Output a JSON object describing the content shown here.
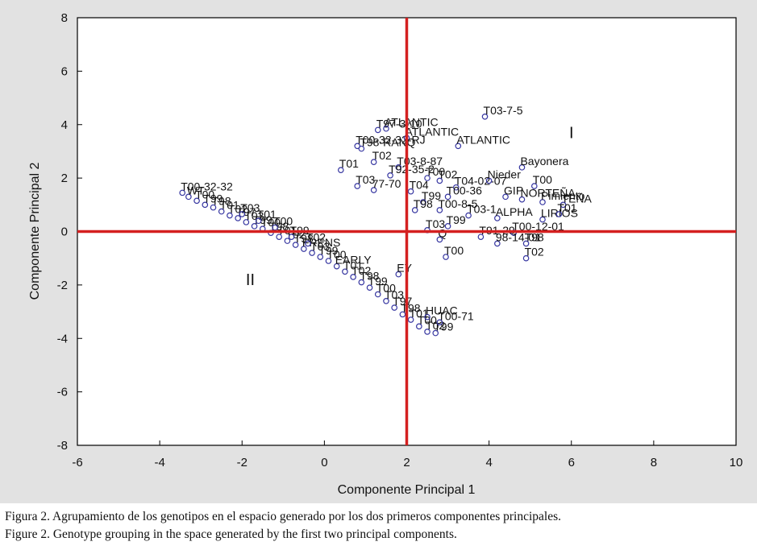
{
  "chart_data": {
    "type": "scatter",
    "xlabel": "Componente Principal 1",
    "ylabel": "Componente Principal 2",
    "xlim": [
      -6,
      10
    ],
    "ylim": [
      -8,
      8
    ],
    "xticks": [
      -6,
      -4,
      -2,
      0,
      2,
      4,
      6,
      8,
      10
    ],
    "yticks": [
      -8,
      -6,
      -4,
      -2,
      0,
      2,
      4,
      6,
      8
    ],
    "grid": false,
    "reference_lines": {
      "x": 2,
      "y": 0,
      "color": "#d42020"
    },
    "marker_color": "#3535a0",
    "group_labels": [
      {
        "text": "I",
        "x": 6.0,
        "y": 3.5
      },
      {
        "text": "II",
        "x": -1.8,
        "y": -2.0
      }
    ],
    "points": [
      {
        "x": -3.45,
        "y": 1.45,
        "label": "T00-32-32"
      },
      {
        "x": -3.3,
        "y": 1.3,
        "label": "WT"
      },
      {
        "x": -3.1,
        "y": 1.15,
        "label": "T00"
      },
      {
        "x": -2.9,
        "y": 1.0,
        "label": "T99"
      },
      {
        "x": -2.7,
        "y": 0.9,
        "label": "T98"
      },
      {
        "x": -2.5,
        "y": 0.75,
        "label": "T01"
      },
      {
        "x": -2.3,
        "y": 0.6,
        "label": "T02"
      },
      {
        "x": -2.1,
        "y": 0.5,
        "label": "T97"
      },
      {
        "x": -1.9,
        "y": 0.35,
        "label": "T03"
      },
      {
        "x": -1.7,
        "y": 0.2,
        "label": "T99"
      },
      {
        "x": -1.5,
        "y": 0.1,
        "label": "T00"
      },
      {
        "x": -1.3,
        "y": -0.05,
        "label": "T98"
      },
      {
        "x": -1.1,
        "y": -0.2,
        "label": "T01"
      },
      {
        "x": -0.9,
        "y": -0.35,
        "label": "T02"
      },
      {
        "x": -0.7,
        "y": -0.5,
        "label": "T98"
      },
      {
        "x": -0.5,
        "y": -0.65,
        "label": "FRENS"
      },
      {
        "x": -0.3,
        "y": -0.8,
        "label": "T03"
      },
      {
        "x": -0.1,
        "y": -0.95,
        "label": "T99"
      },
      {
        "x": 0.1,
        "y": -1.1,
        "label": "T00"
      },
      {
        "x": 0.3,
        "y": -1.3,
        "label": "EARLY"
      },
      {
        "x": 0.5,
        "y": -1.5,
        "label": "T01"
      },
      {
        "x": 0.7,
        "y": -1.7,
        "label": "T02"
      },
      {
        "x": 0.9,
        "y": -1.9,
        "label": "T98"
      },
      {
        "x": 1.1,
        "y": -2.1,
        "label": "T99"
      },
      {
        "x": 1.3,
        "y": -2.35,
        "label": "T00"
      },
      {
        "x": 1.5,
        "y": -2.6,
        "label": "T03"
      },
      {
        "x": 1.7,
        "y": -2.85,
        "label": "T97"
      },
      {
        "x": 1.9,
        "y": -3.1,
        "label": "T98"
      },
      {
        "x": 2.1,
        "y": -3.3,
        "label": "T01"
      },
      {
        "x": 2.3,
        "y": -3.55,
        "label": "T00"
      },
      {
        "x": 2.5,
        "y": -3.75,
        "label": "T02"
      },
      {
        "x": 2.7,
        "y": -3.8,
        "label": "T99"
      },
      {
        "x": -2.0,
        "y": 0.65,
        "label": "T03"
      },
      {
        "x": -1.6,
        "y": 0.4,
        "label": "T01"
      },
      {
        "x": -1.2,
        "y": 0.15,
        "label": "T00"
      },
      {
        "x": -0.8,
        "y": -0.2,
        "label": "T99"
      },
      {
        "x": -0.4,
        "y": -0.45,
        "label": "T02"
      },
      {
        "x": 0.8,
        "y": 3.2,
        "label": "T00-32-32-RJ"
      },
      {
        "x": 1.3,
        "y": 3.8,
        "label": "T97-3-10"
      },
      {
        "x": 1.5,
        "y": 3.85,
        "label": "ATLANTIC"
      },
      {
        "x": 2.0,
        "y": 3.5,
        "label": "ATLANTIC"
      },
      {
        "x": 0.9,
        "y": 3.1,
        "label": "T98-RANQ"
      },
      {
        "x": 1.2,
        "y": 2.6,
        "label": "T02"
      },
      {
        "x": 1.8,
        "y": 2.4,
        "label": "T03-8-87"
      },
      {
        "x": 0.4,
        "y": 2.3,
        "label": "T01"
      },
      {
        "x": 1.6,
        "y": 2.1,
        "label": "T92-35-2"
      },
      {
        "x": 2.5,
        "y": 2.0,
        "label": "T00"
      },
      {
        "x": 0.8,
        "y": 1.7,
        "label": "T03"
      },
      {
        "x": 1.2,
        "y": 1.55,
        "label": "77-70"
      },
      {
        "x": 2.1,
        "y": 1.5,
        "label": "T04"
      },
      {
        "x": 2.8,
        "y": 1.9,
        "label": "T02"
      },
      {
        "x": 3.2,
        "y": 1.65,
        "label": "T04-02-07"
      },
      {
        "x": 3.0,
        "y": 1.3,
        "label": "T00-36"
      },
      {
        "x": 2.4,
        "y": 1.1,
        "label": "T99"
      },
      {
        "x": 2.2,
        "y": 0.8,
        "label": "T98"
      },
      {
        "x": 2.8,
        "y": 0.8,
        "label": "T00-8-5"
      },
      {
        "x": 3.5,
        "y": 0.6,
        "label": "T03-1"
      },
      {
        "x": 3.0,
        "y": 0.2,
        "label": "T99"
      },
      {
        "x": 2.5,
        "y": 0.05,
        "label": "T03"
      },
      {
        "x": 3.9,
        "y": 4.3,
        "label": "T03-7-5"
      },
      {
        "x": 3.25,
        "y": 3.2,
        "label": "ATLANTIC"
      },
      {
        "x": 4.8,
        "y": 2.4,
        "label": "Bayonera"
      },
      {
        "x": 4.0,
        "y": 1.9,
        "label": "Nieder"
      },
      {
        "x": 5.1,
        "y": 1.7,
        "label": "T00"
      },
      {
        "x": 4.4,
        "y": 1.3,
        "label": "GIP"
      },
      {
        "x": 4.8,
        "y": 1.2,
        "label": "NORTEÑA"
      },
      {
        "x": 5.3,
        "y": 1.1,
        "label": "Pimiento"
      },
      {
        "x": 5.8,
        "y": 1.0,
        "label": "TEÑA"
      },
      {
        "x": 4.2,
        "y": 0.5,
        "label": "ALPHA"
      },
      {
        "x": 5.3,
        "y": 0.45,
        "label": "LIRIOS"
      },
      {
        "x": 5.7,
        "y": 0.65,
        "label": "T01"
      },
      {
        "x": 3.8,
        "y": -0.2,
        "label": "T91-29"
      },
      {
        "x": 4.6,
        "y": -0.05,
        "label": "T00-12-01"
      },
      {
        "x": 4.2,
        "y": -0.45,
        "label": "98-14-01"
      },
      {
        "x": 4.9,
        "y": -0.45,
        "label": "T98"
      },
      {
        "x": 4.9,
        "y": -1.0,
        "label": "T02"
      },
      {
        "x": 2.8,
        "y": -0.3,
        "label": "Q"
      },
      {
        "x": 2.95,
        "y": -0.95,
        "label": "T00"
      },
      {
        "x": 1.8,
        "y": -1.6,
        "label": "EY"
      },
      {
        "x": 2.5,
        "y": -3.2,
        "label": "HUAC"
      },
      {
        "x": 2.8,
        "y": -3.4,
        "label": "T00-71"
      }
    ]
  },
  "caption": {
    "es": "Figura 2. Agrupamiento de los genotipos en el espacio generado por los dos primeros componentes principales.",
    "en": "Figure 2. Genotype grouping in the space generated by the first two principal components."
  }
}
